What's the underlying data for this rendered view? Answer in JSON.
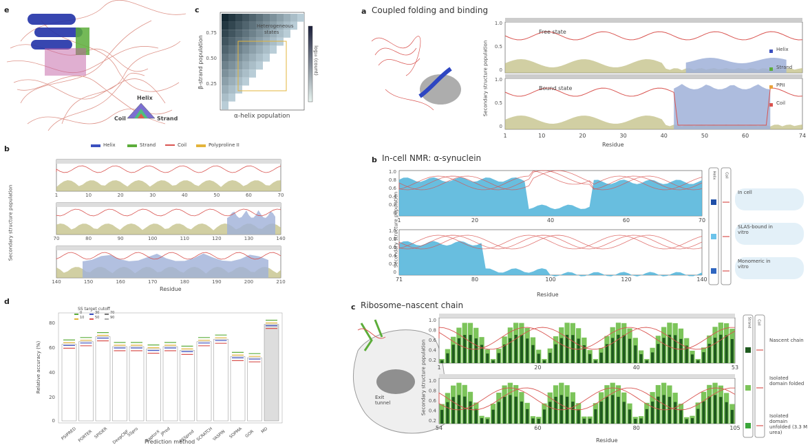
{
  "panel_labels": {
    "left_e": "e",
    "left_c": "c",
    "left_b": "b",
    "left_d": "d",
    "right_a": "a",
    "right_b": "b",
    "right_c": "c"
  },
  "left": {
    "ternary": {
      "helix": "Helix",
      "coil": "Coil",
      "strand": "Strand"
    },
    "heatmap": {
      "ylabel": "β-strand population",
      "xlabel": "α-helix population",
      "annotation_line1": "Heterogeneous",
      "annotation_line2": "states",
      "colorbar_label": "log₁₀ (count)",
      "yticks": [
        "0.75",
        "0.50",
        "0.25"
      ]
    },
    "b": {
      "legend": [
        "Helix",
        "Strand",
        "Coil",
        "Polyproline II"
      ],
      "ylabel": "Secondary structure population",
      "xlabel": "Residue",
      "row_ticks": [
        [
          "1",
          "10",
          "20",
          "30",
          "40",
          "50",
          "60",
          "70"
        ],
        [
          "70",
          "80",
          "90",
          "100",
          "110",
          "120",
          "130",
          "140"
        ],
        [
          "140",
          "150",
          "160",
          "170",
          "180",
          "190",
          "200",
          "210"
        ]
      ]
    },
    "d": {
      "legend_title": "SS target cutoff",
      "legend_items": [
        "0",
        "10",
        "30",
        "50",
        "70",
        "90"
      ],
      "ylabel": "Relative accuracy (%)",
      "xlabel": "Prediction method",
      "yticks": [
        "80",
        "60",
        "40",
        "20",
        "0"
      ],
      "methods": [
        "PSIPRED",
        "PORTER",
        "SPIDER",
        "DeepCNF",
        "SSpro",
        "RaptorX",
        "JPred",
        "PSSpred",
        "SCRATCH",
        "YASPIN",
        "SOPMA",
        "GOR",
        "MD"
      ]
    }
  },
  "a": {
    "title": "Coupled folding and binding",
    "ylabel": "Secondary structure population",
    "xlabel": "Residue",
    "states": [
      "Free state",
      "Bound state"
    ],
    "yticks": [
      "1.0",
      "0.5",
      "0"
    ],
    "xticks": [
      "1",
      "10",
      "20",
      "30",
      "40",
      "50",
      "60",
      "74"
    ],
    "legend": [
      "Helix",
      "Strand",
      "PPII",
      "Coil"
    ]
  },
  "rb": {
    "title": "In-cell NMR: α-synuclein",
    "ylabel": "Secondary structure population",
    "xlabel": "Residue",
    "yticks": [
      "1.0",
      "0.8",
      "0.6",
      "0.4",
      "0.2",
      "0"
    ],
    "row1_xticks": [
      "1",
      "20",
      "40",
      "60",
      "70"
    ],
    "row2_xticks": [
      "71",
      "80",
      "100",
      "120",
      "140"
    ],
    "key_headers": [
      "Helix",
      "Coil"
    ],
    "conditions": [
      "In cell",
      "SLAS-bound in vitro",
      "Monomeric in vitro"
    ]
  },
  "rc": {
    "title": "Ribosome–nascent chain",
    "ylabel": "Secondary structure population",
    "xlabel": "Residue",
    "yticks": [
      "1.0",
      "0.8",
      "0.6",
      "0.4",
      "0.2"
    ],
    "row1_xticks": [
      "1",
      "20",
      "40",
      "53"
    ],
    "row2_xticks": [
      "54",
      "60",
      "80",
      "105"
    ],
    "key_headers": [
      "Strand",
      "Coil"
    ],
    "conditions": [
      "Nascent chain",
      "Isolated domain folded",
      "Isolated domain unfolded (3.3 M urea)"
    ],
    "exit_tunnel": "Exit tunnel"
  },
  "colors": {
    "helix": "#3a4fbf",
    "strand": "#5cad3a",
    "coil": "#d9534f",
    "ppii": "#e8a13a",
    "helix_fill": "#9fb0d8",
    "strand_fill": "#bdbb7c",
    "cyan": "#4eb3d9",
    "darkgreen": "#1f5a1f",
    "lightgreen": "#7cc45a"
  }
}
